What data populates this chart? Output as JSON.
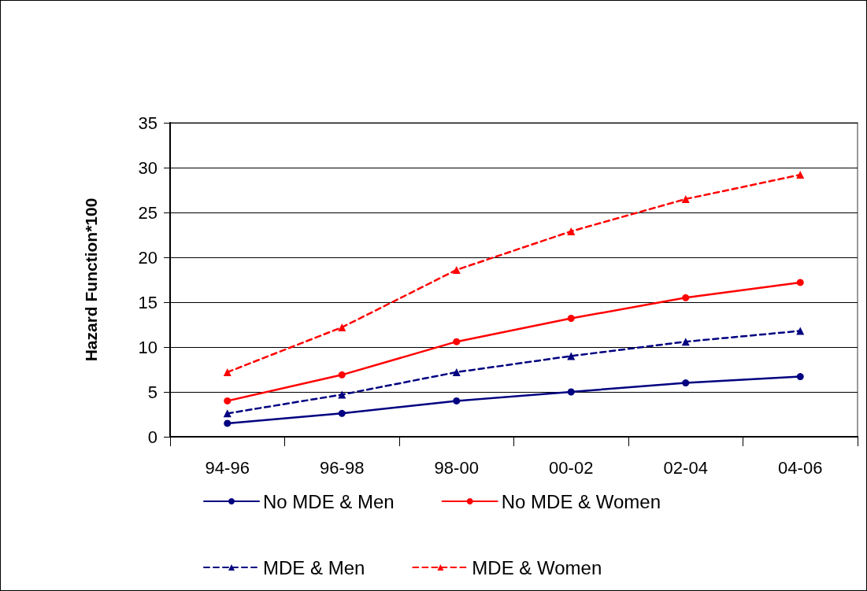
{
  "chart_data": {
    "type": "line",
    "ylabel": "Hazard Function*100",
    "categories": [
      "94-96",
      "96-98",
      "98-00",
      "00-02",
      "02-04",
      "04-06"
    ],
    "series": [
      {
        "name": "No MDE & Men",
        "color": "#000080",
        "marker": "circle",
        "line_style": "solid",
        "values": [
          1.5,
          2.6,
          4.0,
          5.0,
          6.0,
          6.7
        ]
      },
      {
        "name": "No MDE & Women",
        "color": "#ff0000",
        "marker": "circle",
        "line_style": "solid",
        "values": [
          4.0,
          6.9,
          10.6,
          13.2,
          15.5,
          17.2
        ]
      },
      {
        "name": "MDE & Men",
        "color": "#000080",
        "marker": "triangle",
        "line_style": "dashed",
        "values": [
          2.6,
          4.7,
          7.2,
          9.0,
          10.6,
          11.8
        ]
      },
      {
        "name": "MDE & Women",
        "color": "#ff0000",
        "marker": "triangle",
        "line_style": "dashed",
        "values": [
          7.2,
          12.2,
          18.6,
          22.9,
          26.5,
          29.2
        ]
      }
    ],
    "ylim": [
      0,
      35
    ],
    "yticks": [
      0,
      5,
      10,
      15,
      20,
      25,
      30,
      35
    ],
    "grid": "y",
    "legend": "bottom"
  }
}
